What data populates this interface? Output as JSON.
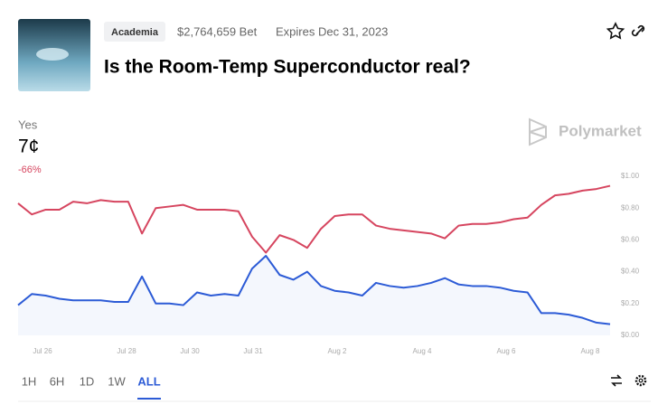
{
  "header": {
    "tag": "Academia",
    "volume": "$2,764,659 Bet",
    "expires": "Expires Dec 31, 2023",
    "title": "Is the Room-Temp Superconductor real?"
  },
  "price": {
    "value": "7¢",
    "change": "-66%"
  },
  "brand": "Polymarket",
  "timeframes": [
    "1H",
    "6H",
    "1D",
    "1W",
    "ALL"
  ],
  "chart_data": {
    "type": "line",
    "xticks": [
      "Jul 26",
      "Jul 28",
      "Jul 30",
      "Jul 31",
      "Aug 2",
      "Aug 4",
      "Aug 6",
      "Aug 8"
    ],
    "ylim": [
      0,
      1
    ],
    "yticks": [
      {
        "value": 0,
        "label": "$0.00"
      },
      {
        "value": 0.2,
        "label": "$0.20"
      },
      {
        "value": 0.4,
        "label": "$0.40"
      },
      {
        "value": 0.6,
        "label": "$0.60"
      },
      {
        "value": 0.8,
        "label": "$0.80"
      },
      {
        "value": 1,
        "label": "$1.00"
      }
    ],
    "series": [
      {
        "name": "Yes",
        "color": "#2c5bd6",
        "values": [
          0.19,
          0.26,
          0.25,
          0.23,
          0.22,
          0.22,
          0.22,
          0.21,
          0.21,
          0.37,
          0.2,
          0.2,
          0.19,
          0.27,
          0.25,
          0.26,
          0.25,
          0.42,
          0.5,
          0.38,
          0.35,
          0.4,
          0.31,
          0.28,
          0.27,
          0.25,
          0.33,
          0.31,
          0.3,
          0.31,
          0.33,
          0.36,
          0.32,
          0.31,
          0.31,
          0.3,
          0.28,
          0.27,
          0.14,
          0.14,
          0.13,
          0.11,
          0.08,
          0.07
        ]
      },
      {
        "color": "#d6455f",
        "values": [
          0.83,
          0.76,
          0.79,
          0.79,
          0.84,
          0.83,
          0.85,
          0.84,
          0.84,
          0.64,
          0.8,
          0.81,
          0.82,
          0.79,
          0.79,
          0.79,
          0.78,
          0.62,
          0.52,
          0.63,
          0.6,
          0.55,
          0.67,
          0.75,
          0.76,
          0.76,
          0.69,
          0.67,
          0.66,
          0.65,
          0.64,
          0.61,
          0.69,
          0.7,
          0.7,
          0.71,
          0.73,
          0.74,
          0.82,
          0.88,
          0.89,
          0.91,
          0.92,
          0.94
        ]
      }
    ]
  }
}
